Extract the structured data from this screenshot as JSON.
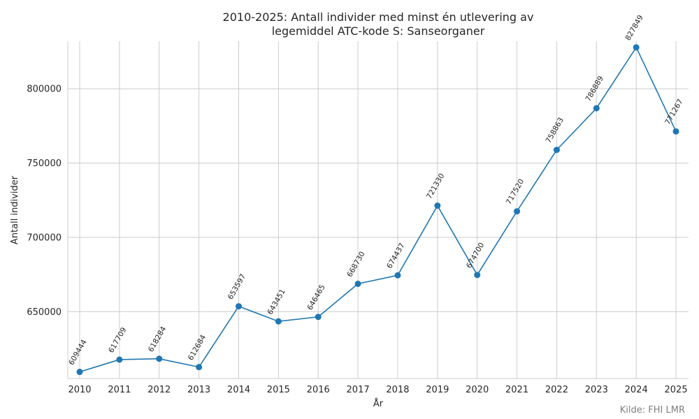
{
  "chart_data": {
    "type": "line",
    "title_line1": "2010-2025: Antall individer med minst én utlevering av",
    "title_line2": "legemiddel ATC-kode S: Sanseorganer",
    "xlabel": "År",
    "ylabel": "Antall individer",
    "source": "Kilde: FHI LMR",
    "x": [
      "2010",
      "2011",
      "2012",
      "2013",
      "2014",
      "2015",
      "2016",
      "2017",
      "2018",
      "2019",
      "2020",
      "2021",
      "2022",
      "2023",
      "2024",
      "2025"
    ],
    "values": [
      609444,
      617709,
      618284,
      612684,
      653597,
      643451,
      646465,
      668730,
      674437,
      721330,
      674700,
      717520,
      758863,
      786889,
      827849,
      771267
    ],
    "ylim": [
      605000,
      832000
    ],
    "yticks": [
      650000,
      700000,
      750000,
      800000
    ],
    "ytick_labels": [
      "650000",
      "700000",
      "750000",
      "800000"
    ],
    "grid": true,
    "line_color": "#1f77b4"
  }
}
